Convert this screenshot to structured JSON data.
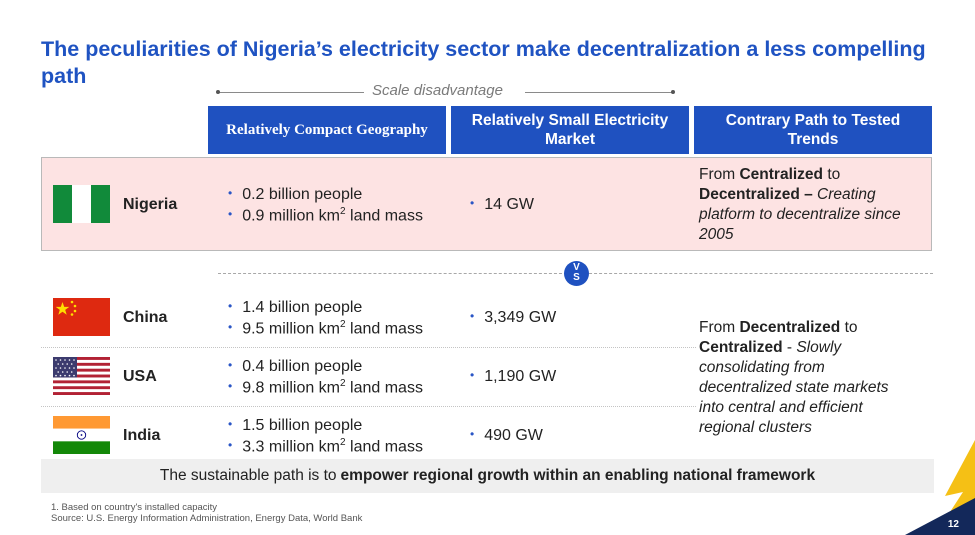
{
  "title": "The peculiarities of Nigeria’s electricity sector make decentralization a less compelling path",
  "scale_label": "Scale disadvantage",
  "headers": {
    "geography": "Relatively Compact Geography",
    "market": "Relatively Small Electricity Market",
    "path": "Contrary Path to Tested Trends"
  },
  "nigeria": {
    "name": "Nigeria",
    "people": "0.2 billion people",
    "land_prefix": "0.9 million km",
    "land_suffix": " land mass",
    "capacity": "14 GW",
    "path": {
      "p1": "From ",
      "b1": "Centralized",
      "p2": " to ",
      "b2": "Decentralized –",
      "i1": " Creating platform to decentralize since 2005"
    }
  },
  "vs": {
    "v": "V",
    "s": "S"
  },
  "countries": [
    {
      "name": "China",
      "people": "1.4 billion people",
      "land_prefix": "9.5 million km",
      "land_suffix": " land mass",
      "capacity": "3,349 GW"
    },
    {
      "name": "USA",
      "people": "0.4 billion people",
      "land_prefix": "9.8 million km",
      "land_suffix": " land mass",
      "capacity": "1,190 GW"
    },
    {
      "name": "India",
      "people": "1.5 billion people",
      "land_prefix": "3.3 million km",
      "land_suffix": " land mass",
      "capacity": "490 GW"
    }
  ],
  "others_path": {
    "p1": "From ",
    "b1": "Decentralized",
    "p2": " to ",
    "b2": "Centralized",
    "p3": " - ",
    "i1": "Slowly consolidating from decentralized state markets into central and efficient regional clusters"
  },
  "bottom": {
    "prefix": "The sustainable path is to ",
    "bold": "empower regional growth within an enabling national framework"
  },
  "footnote": "1. Based on country's installed capacity",
  "source": "Source: U.S. Energy Information Administration, Energy Data, World Bank",
  "page_number": "12",
  "sup2": "2",
  "bullet_char": "•",
  "colors": {
    "title": "#1f53c2",
    "header": "#1f51c0",
    "nigeria_band": "#fde3e3",
    "footer_band": "#efefef",
    "corner_navy": "#13285a",
    "corner_gold": "#f5c015"
  }
}
